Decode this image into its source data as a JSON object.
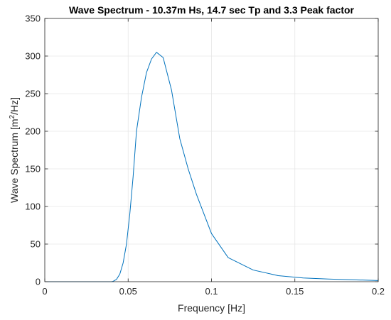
{
  "chart_data": {
    "type": "line",
    "title": "Wave Spectrum - 10.37m Hs, 14.7 sec Tp and 3.3 Peak factor",
    "xlabel": "Frequency [Hz]",
    "ylabel_main": "Wave Spectrum [m",
    "ylabel_sup": "2",
    "ylabel_tail": "/Hz]",
    "xlim": [
      0,
      0.2
    ],
    "ylim": [
      0,
      350
    ],
    "x_ticks": [
      0,
      0.05,
      0.1,
      0.15,
      0.2
    ],
    "x_tick_labels": [
      "0",
      "0.05",
      "0.1",
      "0.15",
      "0.2"
    ],
    "y_ticks": [
      0,
      50,
      100,
      150,
      200,
      250,
      300,
      350
    ],
    "y_tick_labels": [
      "0",
      "50",
      "100",
      "150",
      "200",
      "250",
      "300",
      "350"
    ],
    "grid": true,
    "series": [
      {
        "color": "#0072BD",
        "x": [
          0,
          0.01,
          0.02,
          0.03,
          0.04,
          0.041,
          0.043,
          0.045,
          0.047,
          0.049,
          0.051,
          0.053,
          0.055,
          0.058,
          0.061,
          0.064,
          0.067,
          0.071,
          0.076,
          0.081,
          0.086,
          0.091,
          0.1,
          0.11,
          0.125,
          0.14,
          0.155,
          0.17,
          0.185,
          0.2
        ],
        "y": [
          0,
          0,
          0,
          0,
          0,
          0.5,
          3,
          10,
          25,
          50,
          90,
          140,
          200,
          245,
          278,
          296,
          305,
          298,
          255,
          190,
          150,
          116,
          64,
          32,
          15.5,
          8,
          5,
          3.5,
          2.5,
          1.5
        ]
      }
    ]
  }
}
